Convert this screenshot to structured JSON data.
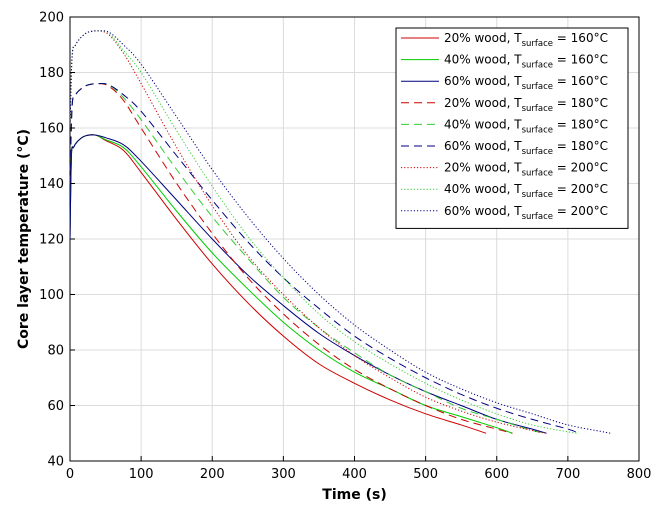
{
  "chart_data": {
    "type": "line",
    "title": "",
    "xlabel": "Time (s)",
    "ylabel": "Core layer temperature  (°C)",
    "xlim": [
      0,
      800
    ],
    "ylim": [
      40,
      200
    ],
    "xticks": [
      "0",
      "100",
      "200",
      "300",
      "400",
      "500",
      "600",
      "700",
      "800"
    ],
    "yticks": [
      "40",
      "60",
      "80",
      "100",
      "120",
      "140",
      "160",
      "180",
      "200"
    ],
    "grid": true,
    "legend_position": "top-right",
    "series": [
      {
        "name_main": "20% wood, T",
        "name_sub": "surface",
        "name_tail": " = 160°C",
        "color": "#cc0000",
        "style": "solid",
        "x": [
          0,
          2,
          5,
          10,
          20,
          35,
          50,
          75,
          100,
          150,
          200,
          250,
          300,
          350,
          400,
          450,
          500,
          550,
          585
        ],
        "y": [
          120,
          150,
          153,
          155,
          157,
          157.5,
          155.5,
          152,
          144,
          127,
          111,
          97,
          85,
          75,
          68,
          62,
          57,
          53,
          50
        ]
      },
      {
        "name_main": "40% wood, T",
        "name_sub": "surface",
        "name_tail": " = 160°C",
        "color": "#00cc00",
        "style": "solid",
        "x": [
          0,
          2,
          5,
          10,
          20,
          35,
          50,
          75,
          100,
          150,
          200,
          250,
          300,
          350,
          400,
          450,
          500,
          550,
          600,
          622
        ],
        "y": [
          120,
          150,
          153,
          155,
          157,
          157.5,
          155.8,
          153,
          146,
          130,
          115,
          102,
          90,
          80,
          72,
          66,
          60,
          56,
          52,
          50
        ]
      },
      {
        "name_main": "60% wood, T",
        "name_sub": "surface",
        "name_tail": " = 160°C",
        "color": "#000080",
        "style": "solid",
        "x": [
          0,
          2,
          5,
          10,
          20,
          35,
          50,
          75,
          100,
          150,
          200,
          250,
          300,
          350,
          400,
          450,
          500,
          550,
          600,
          650,
          670
        ],
        "y": [
          120,
          150,
          153,
          155,
          157,
          157.5,
          156.5,
          154,
          148,
          134,
          120,
          107,
          96,
          86,
          78,
          71,
          65,
          60,
          55,
          51.5,
          50
        ]
      },
      {
        "name_main": "20% wood, T",
        "name_sub": "surface",
        "name_tail": " = 180°C",
        "color": "#cc0000",
        "style": "dashed",
        "x": [
          0,
          3,
          8,
          15,
          25,
          40,
          55,
          75,
          100,
          150,
          200,
          250,
          300,
          350,
          400,
          450,
          500,
          550,
          600,
          622
        ],
        "y": [
          140,
          168,
          172,
          174,
          175.5,
          176,
          175,
          170,
          160,
          140,
          122,
          106,
          93,
          82,
          73,
          66,
          60,
          55,
          51.5,
          50
        ]
      },
      {
        "name_main": "40% wood, T",
        "name_sub": "surface",
        "name_tail": " = 180°C",
        "color": "#33cc33",
        "style": "dashed",
        "x": [
          0,
          3,
          8,
          15,
          25,
          40,
          55,
          75,
          100,
          150,
          200,
          250,
          300,
          350,
          400,
          450,
          500,
          550,
          600,
          650,
          668
        ],
        "y": [
          140,
          168,
          172,
          174,
          175.5,
          176,
          175.5,
          171,
          163,
          145,
          128,
          113,
          99,
          88,
          79,
          71,
          65,
          59,
          55,
          51,
          50
        ]
      },
      {
        "name_main": "60% wood, T",
        "name_sub": "surface",
        "name_tail": " = 180°C",
        "color": "#000080",
        "style": "dashed",
        "x": [
          0,
          3,
          8,
          15,
          25,
          40,
          55,
          75,
          100,
          150,
          200,
          250,
          300,
          350,
          400,
          450,
          500,
          550,
          600,
          650,
          700,
          715
        ],
        "y": [
          140,
          168,
          172,
          174,
          175.5,
          176,
          175.5,
          172,
          166,
          150,
          134,
          119,
          106,
          95,
          85,
          77,
          70,
          64,
          59,
          55,
          51.5,
          50
        ]
      },
      {
        "name_main": "20% wood, T",
        "name_sub": "surface",
        "name_tail": " = 200°C",
        "color": "#cc0000",
        "style": "dotted",
        "x": [
          0,
          3,
          8,
          15,
          25,
          40,
          55,
          75,
          100,
          150,
          200,
          250,
          300,
          350,
          400,
          450,
          500,
          550,
          600,
          650,
          668
        ],
        "y": [
          160,
          186,
          190,
          192.5,
          194.5,
          195,
          193.5,
          187,
          176,
          153,
          132,
          114,
          100,
          88,
          78,
          70,
          63,
          58,
          54,
          51,
          50
        ]
      },
      {
        "name_main": "40% wood, T",
        "name_sub": "surface",
        "name_tail": " = 200°C",
        "color": "#33cc33",
        "style": "dotted",
        "x": [
          0,
          3,
          8,
          15,
          25,
          40,
          55,
          75,
          100,
          150,
          200,
          250,
          300,
          350,
          400,
          450,
          500,
          550,
          600,
          650,
          700,
          715
        ],
        "y": [
          160,
          186,
          190,
          192.5,
          194.5,
          195,
          194,
          188,
          180,
          159,
          139,
          121,
          106,
          93,
          83,
          75,
          68,
          62,
          57,
          53,
          50.5,
          50
        ]
      },
      {
        "name_main": "60% wood, T",
        "name_sub": "surface",
        "name_tail": " = 200°C",
        "color": "#000080",
        "style": "dotted",
        "x": [
          0,
          3,
          8,
          15,
          25,
          40,
          55,
          75,
          100,
          150,
          200,
          250,
          300,
          350,
          400,
          450,
          500,
          550,
          600,
          650,
          700,
          750,
          760
        ],
        "y": [
          160,
          186,
          190,
          192.5,
          194.5,
          195,
          194.5,
          190,
          183,
          164,
          145,
          128,
          113,
          100,
          89,
          80,
          72,
          66,
          61,
          57,
          53,
          50.5,
          50
        ]
      }
    ]
  }
}
